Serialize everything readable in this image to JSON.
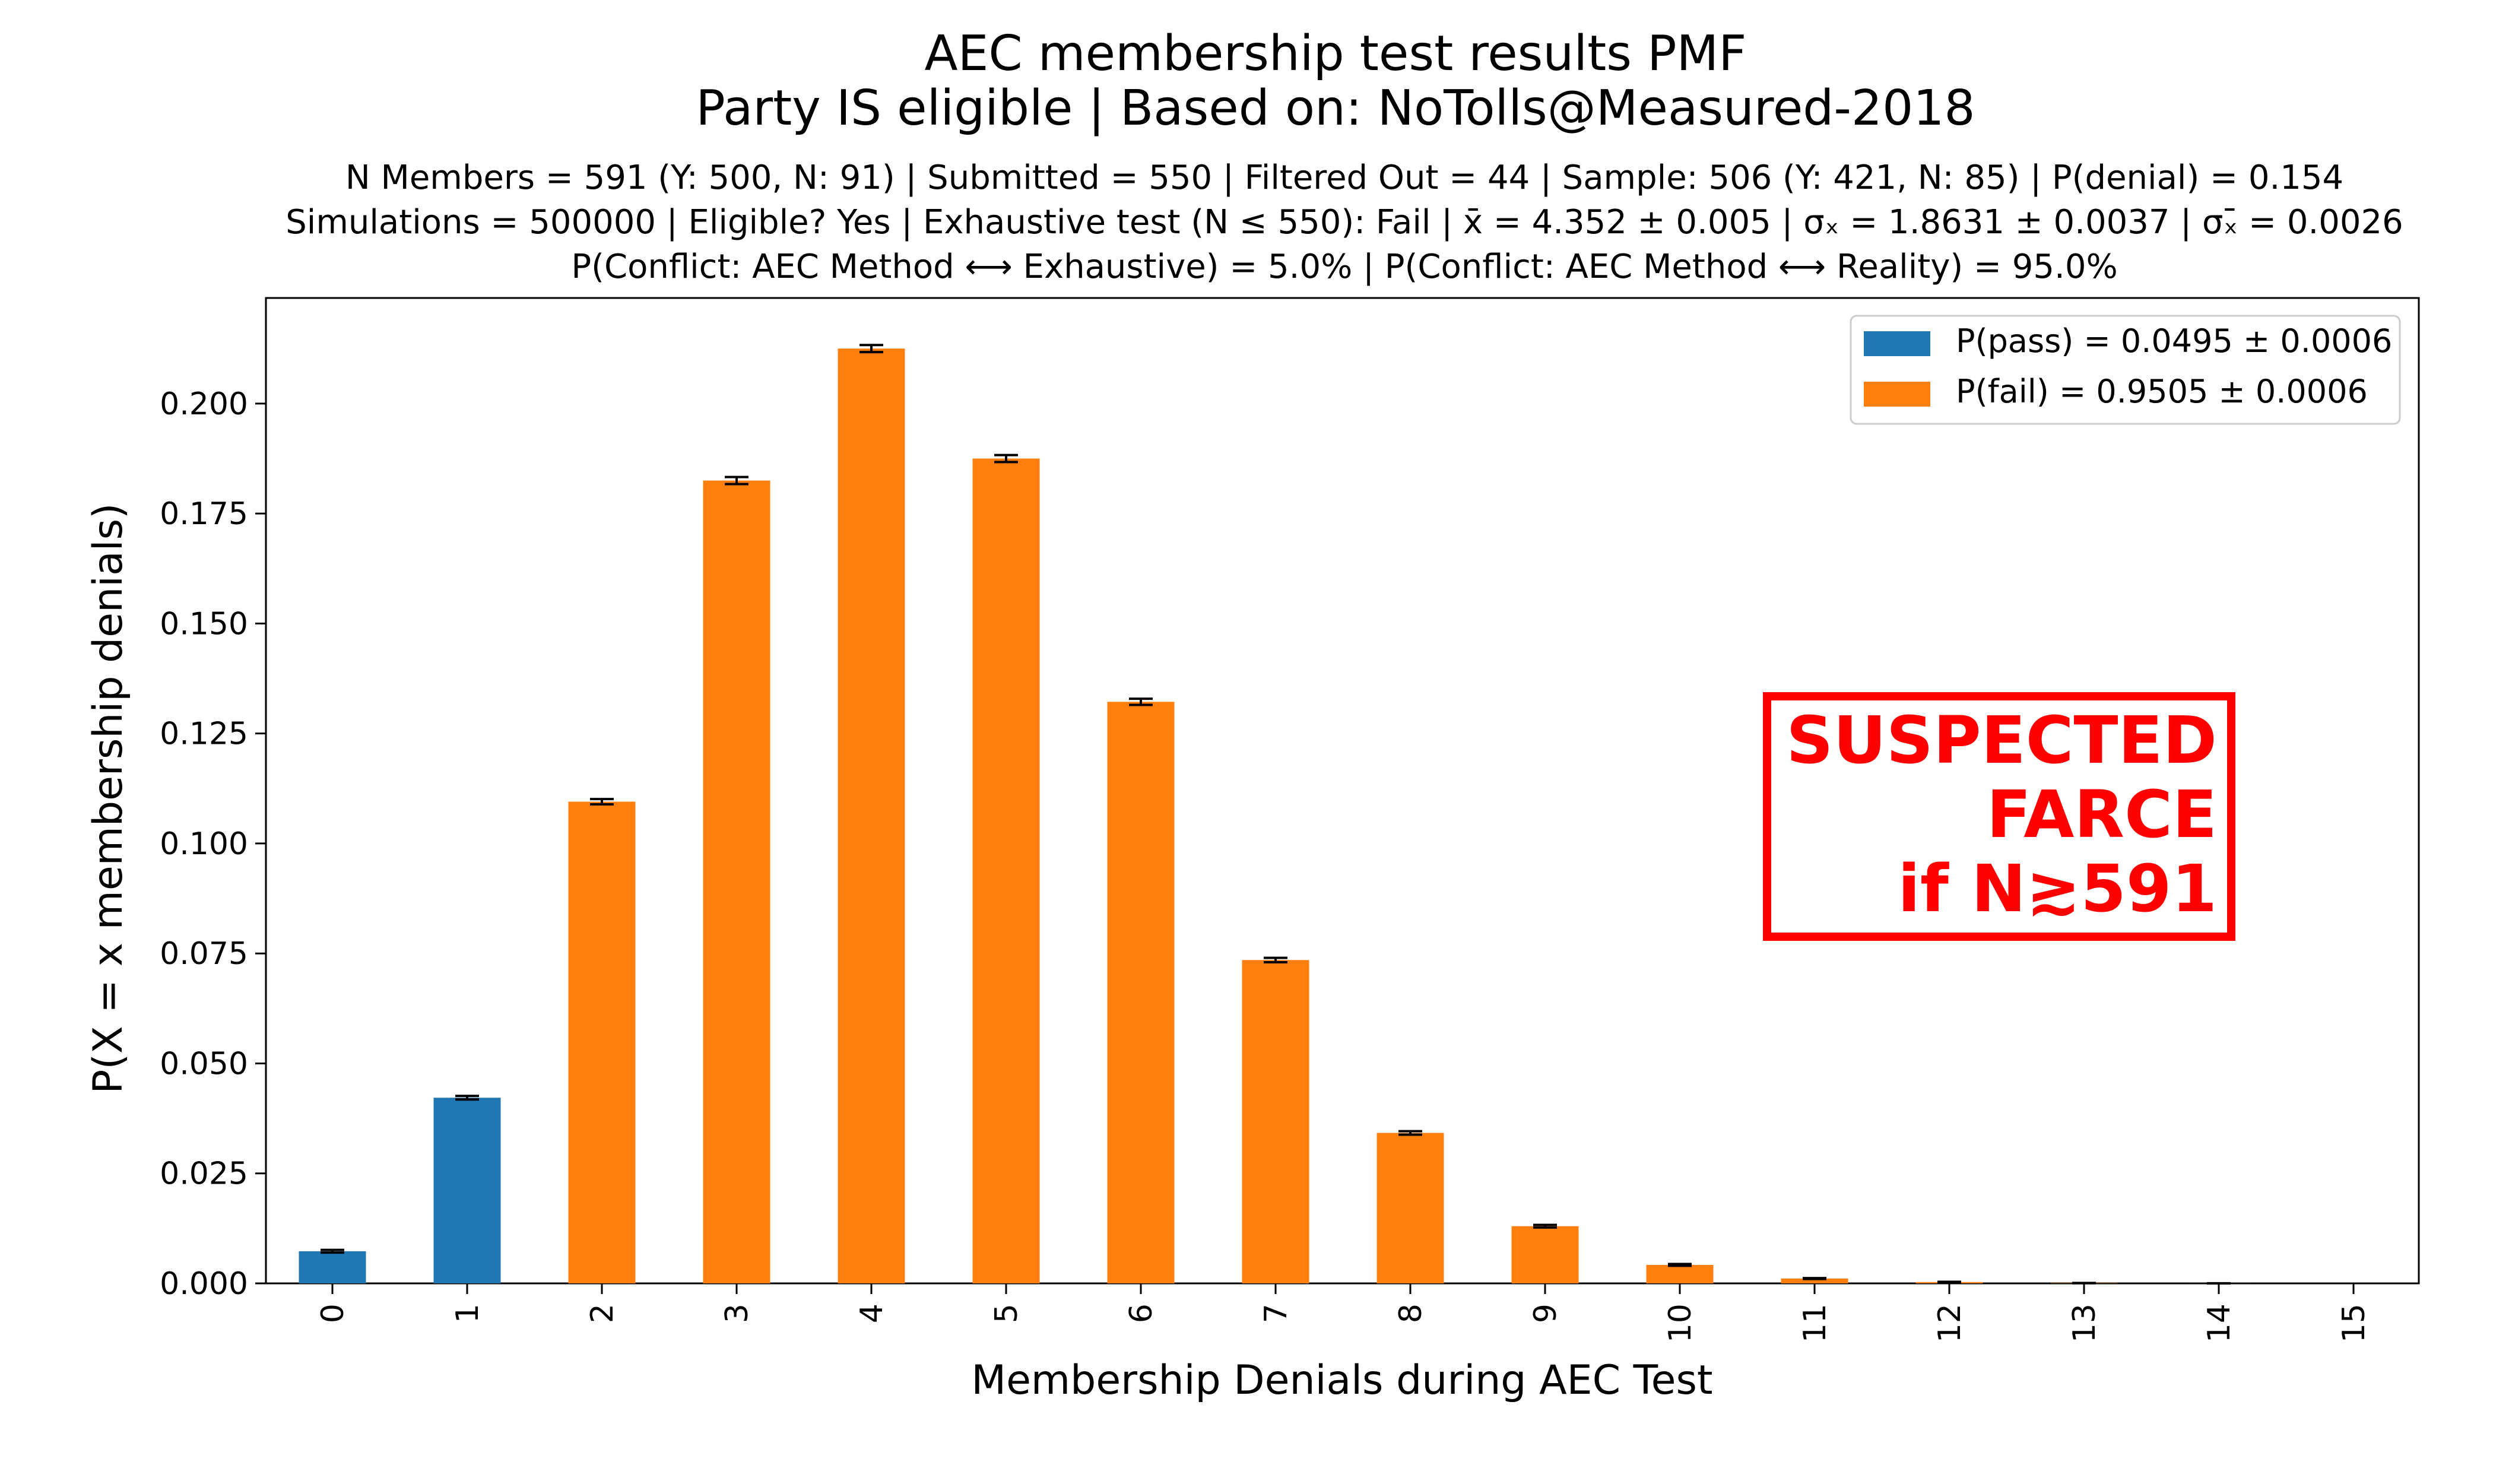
{
  "chart_data": {
    "type": "bar",
    "title": "AEC membership test results PMF",
    "title_line2": "Party IS eligible | Based on: NoTolls@Measured-2018",
    "subtitle_lines": [
      "N Members = 591 (Y: 500, N: 91) | Submitted = 550 | Filtered Out = 44 | Sample: 506 (Y: 421, N: 85) | P(denial) = 0.154",
      "Simulations = 500000 | Eligible? Yes | Exhaustive test (N ≤ 550): Fail | x̄ = 4.352 ± 0.005 | σₓ = 1.8631 ± 0.0037 | σₓ̄ = 0.0026",
      "P(Conflict: AEC Method ⟷ Exhaustive) = 5.0% | P(Conflict: AEC Method ⟷ Reality) = 95.0%"
    ],
    "xlabel": "Membership Denials during AEC Test",
    "ylabel": "P(X = x membership denials)",
    "ylim": [
      0,
      0.224
    ],
    "yticks": [
      0.0,
      0.025,
      0.05,
      0.075,
      0.1,
      0.125,
      0.15,
      0.175,
      0.2
    ],
    "ytick_labels": [
      "0.000",
      "0.025",
      "0.050",
      "0.075",
      "0.100",
      "0.125",
      "0.150",
      "0.175",
      "0.200"
    ],
    "categories": [
      "0",
      "1",
      "2",
      "3",
      "4",
      "5",
      "6",
      "7",
      "8",
      "9",
      "10",
      "11",
      "12",
      "13",
      "14",
      "15"
    ],
    "values": [
      0.0073,
      0.0422,
      0.1095,
      0.1825,
      0.2125,
      0.1875,
      0.1322,
      0.0735,
      0.0342,
      0.013,
      0.0042,
      0.0011,
      0.0003,
      6e-05,
      1e-05,
      0.0
    ],
    "errors": [
      0.0003,
      0.0004,
      0.0006,
      0.0008,
      0.0008,
      0.0008,
      0.0007,
      0.0005,
      0.0004,
      0.0003,
      0.0002,
      0.0001,
      5e-05,
      2e-05,
      1e-05,
      0.0
    ],
    "groups": [
      "pass",
      "pass",
      "fail",
      "fail",
      "fail",
      "fail",
      "fail",
      "fail",
      "fail",
      "fail",
      "fail",
      "fail",
      "fail",
      "fail",
      "fail",
      "fail"
    ],
    "legend": {
      "placement": "top-right",
      "entries": [
        {
          "key": "pass",
          "label": "P(pass) = 0.0495 ± 0.0006",
          "color": "#1f77b4"
        },
        {
          "key": "fail",
          "label": "P(fail) = 0.9505 ± 0.0006",
          "color": "#ff7f0e"
        }
      ]
    },
    "annotation": {
      "lines": [
        "SUSPECTED",
        "FARCE",
        "if N≳591"
      ],
      "color": "#ff0000"
    },
    "grid": false
  }
}
